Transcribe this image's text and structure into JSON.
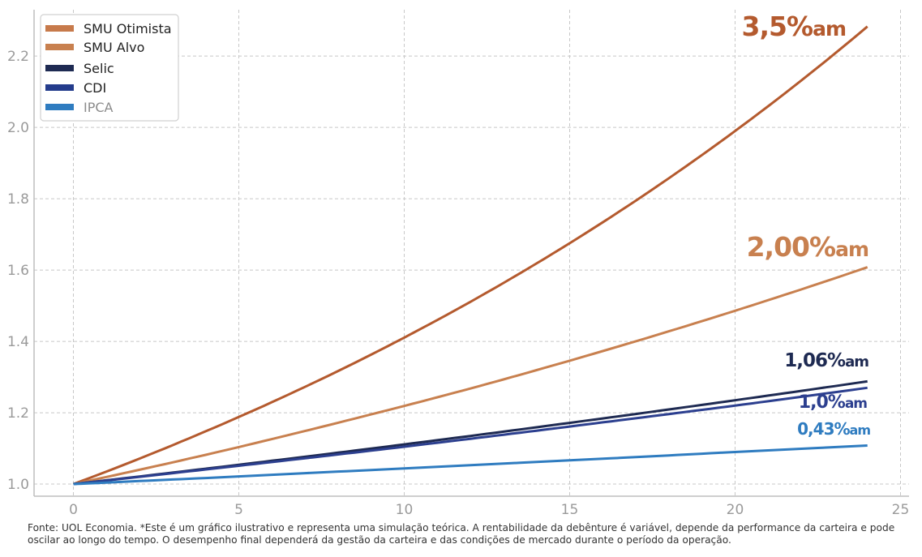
{
  "chart_data": {
    "type": "line",
    "x_ticks": [
      "0",
      "5",
      "10",
      "15",
      "20",
      "25"
    ],
    "y_ticks": [
      "1.0",
      "1.2",
      "1.4",
      "1.6",
      "1.8",
      "2.0",
      "2.2"
    ],
    "xlim": [
      0,
      25
    ],
    "ylim": [
      0.966,
      2.33
    ],
    "grid": true,
    "legend_position": "top-left",
    "series": [
      {
        "name": "SMU Otimista",
        "rate": 0.035,
        "color": "#b45a2e",
        "legend_color": "#c77a4b",
        "end_label_main": "3,5%",
        "end_label_suffix": "am",
        "x": [
          0,
          4,
          8,
          12,
          16,
          20,
          24
        ],
        "values": [
          1.0,
          1.148,
          1.317,
          1.511,
          1.734,
          1.99,
          2.283
        ]
      },
      {
        "name": "SMU Alvo",
        "rate": 0.02,
        "color": "#c8804f",
        "legend_color": "#c8804f",
        "end_label_main": "2,00%",
        "end_label_suffix": "am",
        "x": [
          0,
          4,
          8,
          12,
          16,
          20,
          24
        ],
        "values": [
          1.0,
          1.082,
          1.172,
          1.268,
          1.373,
          1.486,
          1.608
        ]
      },
      {
        "name": "Selic",
        "rate": 0.0106,
        "color": "#1e2a52",
        "legend_color": "#1e2a52",
        "end_label_main": "1,06%",
        "end_label_suffix": "am",
        "x": [
          0,
          4,
          8,
          12,
          16,
          20,
          24
        ],
        "values": [
          1.0,
          1.043,
          1.088,
          1.135,
          1.184,
          1.235,
          1.288
        ]
      },
      {
        "name": "CDI",
        "rate": 0.01,
        "color": "#2c3f8f",
        "legend_color": "#243c8c",
        "end_label_main": "1,0%",
        "end_label_suffix": "am",
        "x": [
          0,
          4,
          8,
          12,
          16,
          20,
          24
        ],
        "values": [
          1.0,
          1.041,
          1.083,
          1.127,
          1.173,
          1.22,
          1.27
        ]
      },
      {
        "name": "IPCA",
        "rate": 0.0043,
        "color": "#2f7cc0",
        "legend_color": "#2f7cc0",
        "end_label_main": "0,43%",
        "end_label_suffix": "am",
        "x": [
          0,
          4,
          8,
          12,
          16,
          20,
          24
        ],
        "values": [
          1.0,
          1.017,
          1.035,
          1.053,
          1.071,
          1.09,
          1.108
        ]
      }
    ]
  },
  "footnote": "Fonte: UOL Economia. *Este é um gráfico ilustrativo e representa uma simulação teórica. A rentabilidade da debênture é variável, depende da performance da carteira e pode oscilar ao longo do tempo. O desempenho final dependerá da gestão da carteira e das condições de mercado durante o período da operação."
}
